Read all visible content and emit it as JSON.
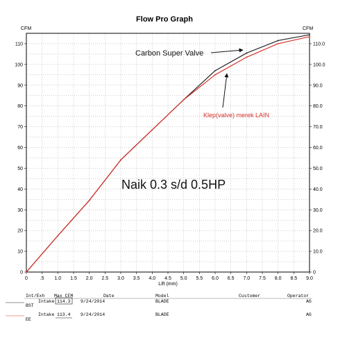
{
  "chart_data": {
    "type": "line",
    "title": "Flow Pro Graph",
    "y_unit_left": "CFM",
    "y_unit_right": "CFM",
    "xlabel": "Lift (mm)",
    "xlim": [
      0,
      9
    ],
    "ylim": [
      0,
      115
    ],
    "x_ticks": [
      "0",
      ".5",
      "1.0",
      "1.5",
      "2.0",
      "2.5",
      "3.0",
      "3.5",
      "4.0",
      "4.5",
      "5.0",
      "5.5",
      "6.0",
      "6.5",
      "7.0",
      "7.5",
      "8.0",
      "8.5",
      "9.0"
    ],
    "x_tick_values": [
      0,
      0.5,
      1,
      1.5,
      2,
      2.5,
      3,
      3.5,
      4,
      4.5,
      5,
      5.5,
      6,
      6.5,
      7,
      7.5,
      8,
      8.5,
      9
    ],
    "y_ticks_left": [
      "0",
      "10",
      "20",
      "30",
      "40",
      "50",
      "60",
      "70",
      "80",
      "90",
      "100",
      "110"
    ],
    "y_ticks_right": [
      "0",
      "10.0",
      "20.0",
      "30.0",
      "40.0",
      "50.0",
      "60.0",
      "70.0",
      "80.0",
      "90.0",
      "100.0",
      "110.0"
    ],
    "y_tick_values": [
      0,
      10,
      20,
      30,
      40,
      50,
      60,
      70,
      80,
      90,
      100,
      110
    ],
    "grid": true,
    "x": [
      0,
      1,
      2,
      3,
      4,
      5,
      6,
      7,
      8,
      9
    ],
    "series": [
      {
        "color": "#222222",
        "values": [
          0,
          17.5,
          34.5,
          54,
          68.5,
          83,
          97,
          105.5,
          111.5,
          114.3
        ]
      },
      {
        "color": "#d9322b",
        "values": [
          0,
          17.5,
          34.5,
          54,
          68.5,
          83,
          95,
          103.5,
          110,
          113.4
        ]
      }
    ],
    "annotations": [
      {
        "text": "Carbon Super Valve",
        "color": "#111111",
        "points_to": [
          7.0,
          106
        ]
      },
      {
        "text": "Klep(valve) merek LAIN",
        "color": "#d9322b",
        "points_to": [
          6.3,
          98
        ]
      },
      {
        "text": "Naik 0.3 s/d 0.5HP",
        "color": "#111111"
      }
    ]
  },
  "table": {
    "headers": {
      "int_exh": "Int/Exh",
      "max_cfm": "Max CFM",
      "date": "Date",
      "model": "Model",
      "customer": "Customer",
      "operator": "Operator"
    },
    "rows": [
      {
        "int_exh": "Intake",
        "sub": "BST",
        "max_cfm": "114.3",
        "date": "9/24/2014",
        "model": "BLADE",
        "customer": "",
        "operator": "AG"
      },
      {
        "int_exh": "Intake",
        "sub": "EE",
        "max_cfm": "113.4",
        "date": "9/24/2014",
        "model": "BLADE",
        "customer": "",
        "operator": "AG"
      }
    ]
  }
}
